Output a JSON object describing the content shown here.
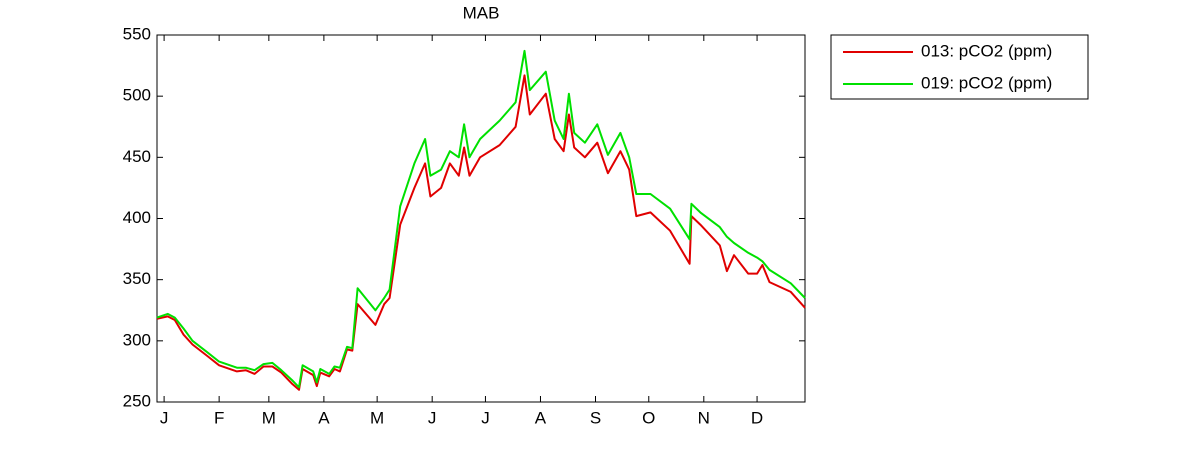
{
  "chart_data": {
    "type": "line",
    "title": "MAB",
    "x": [
      0,
      6,
      10,
      15,
      20,
      28,
      35,
      45,
      50,
      55,
      60,
      65,
      70,
      76,
      80,
      82,
      88,
      90,
      92,
      97,
      100,
      103,
      107,
      110,
      113,
      123,
      128,
      131,
      137,
      145,
      151,
      154,
      160,
      165,
      170,
      173,
      176,
      182,
      193,
      202,
      207,
      210,
      219,
      224,
      229,
      232,
      235,
      241,
      248,
      254,
      261,
      266,
      270,
      278,
      289,
      300,
      301,
      306,
      317,
      321,
      325,
      333,
      338,
      341,
      345,
      357,
      365
    ],
    "series": [
      {
        "name": "013: pCO2 (ppm)",
        "color": "#e00000",
        "values": [
          318,
          320,
          317,
          305,
          297,
          288,
          280,
          275,
          276,
          273,
          279,
          279,
          274,
          265,
          260,
          277,
          272,
          263,
          274,
          271,
          277,
          275,
          293,
          292,
          330,
          313,
          330,
          335,
          395,
          425,
          445,
          418,
          425,
          445,
          435,
          458,
          435,
          450,
          460,
          475,
          517,
          485,
          502,
          465,
          455,
          485,
          458,
          450,
          462,
          437,
          455,
          440,
          402,
          405,
          390,
          363,
          402,
          395,
          378,
          357,
          370,
          355,
          355,
          362,
          348,
          340,
          327
        ]
      },
      {
        "name": "019: pCO2 (ppm)",
        "color": "#00e000",
        "values": [
          319,
          322,
          319,
          310,
          300,
          291,
          283,
          278,
          278,
          276,
          281,
          282,
          276,
          268,
          262,
          280,
          275,
          266,
          277,
          273,
          279,
          278,
          295,
          294,
          343,
          325,
          335,
          342,
          410,
          445,
          465,
          435,
          440,
          455,
          450,
          477,
          450,
          465,
          480,
          495,
          537,
          505,
          520,
          480,
          465,
          502,
          470,
          462,
          477,
          452,
          470,
          450,
          420,
          420,
          408,
          383,
          412,
          405,
          393,
          385,
          380,
          372,
          368,
          365,
          358,
          347,
          335
        ]
      }
    ],
    "xlim": [
      0,
      365
    ],
    "xticks": [
      {
        "value": 4,
        "label": "J"
      },
      {
        "value": 35,
        "label": "F"
      },
      {
        "value": 63,
        "label": "M"
      },
      {
        "value": 94,
        "label": "A"
      },
      {
        "value": 124,
        "label": "M"
      },
      {
        "value": 155,
        "label": "J"
      },
      {
        "value": 185,
        "label": "J"
      },
      {
        "value": 216,
        "label": "A"
      },
      {
        "value": 247,
        "label": "S"
      },
      {
        "value": 277,
        "label": "O"
      },
      {
        "value": 308,
        "label": "N"
      },
      {
        "value": 338,
        "label": "D"
      }
    ],
    "ylim": [
      250,
      550
    ],
    "yticks": [
      250,
      300,
      350,
      400,
      450,
      500,
      550
    ],
    "legend": "outside-right"
  }
}
